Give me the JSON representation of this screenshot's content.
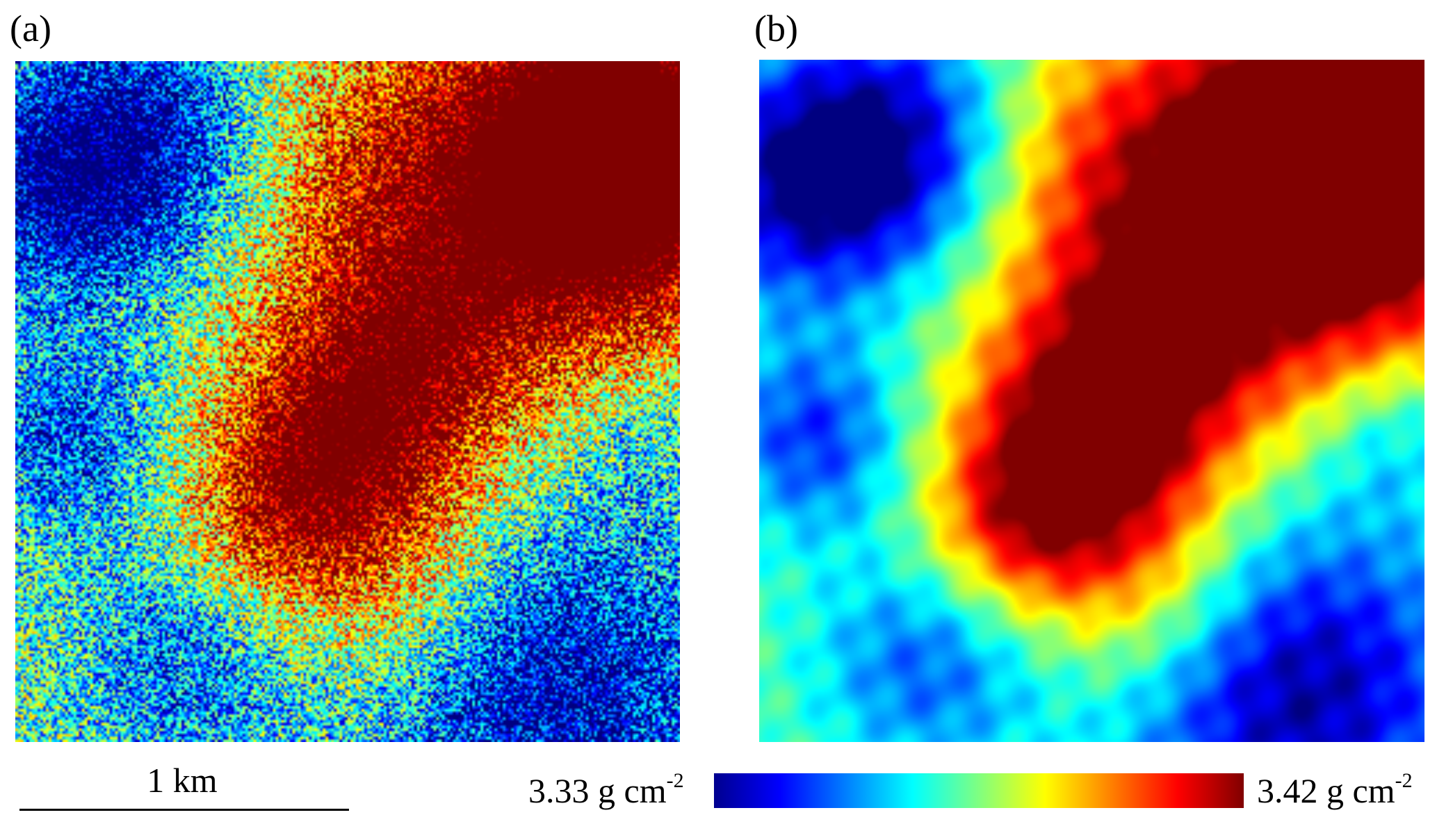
{
  "panels": {
    "a": {
      "label": "(a)"
    },
    "b": {
      "label": "(b)"
    }
  },
  "scale_bar": {
    "label": "1 km"
  },
  "colorbar": {
    "min_value": "3.33",
    "max_value": "3.42",
    "unit": "g cm",
    "unit_exponent": "-2",
    "colormap": "jet",
    "colors": [
      "#00008f",
      "#0000ff",
      "#0080ff",
      "#00ffff",
      "#80ff80",
      "#ffff00",
      "#ff8000",
      "#ff0000",
      "#800000"
    ]
  }
}
